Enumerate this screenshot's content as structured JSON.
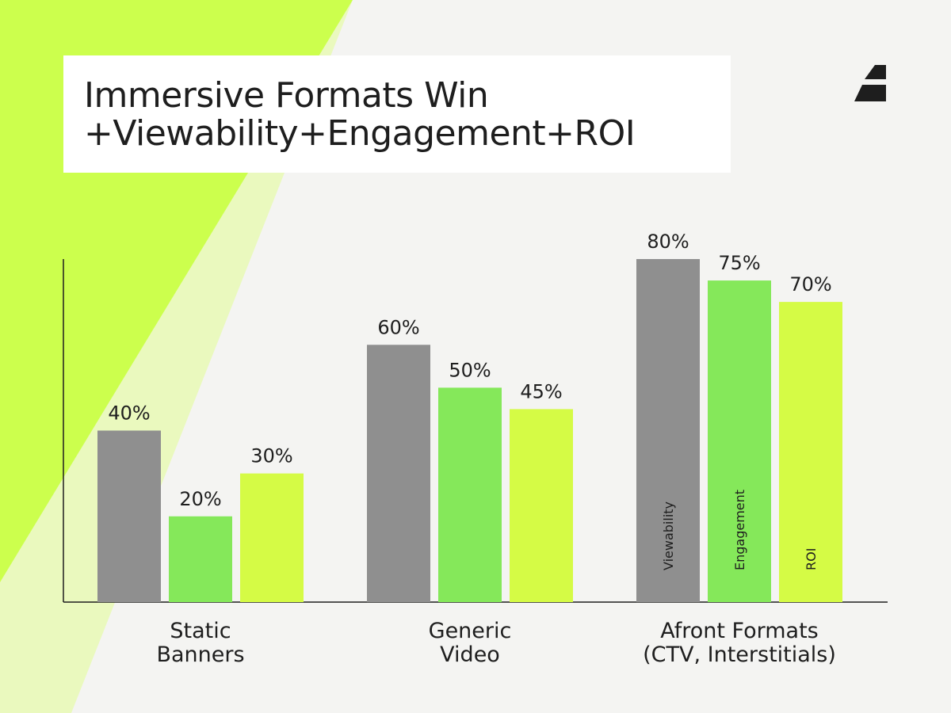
{
  "title": {
    "line1": "Immersive Formats Win",
    "line2": "+Viewability+Engagement+ROI"
  },
  "logo": {
    "icon": "brand-logo-icon"
  },
  "colors": {
    "background": "#f4f4f2",
    "accent_lime": "#ccff4d",
    "viewability": "#8f8f8f",
    "engagement": "#85e85a",
    "roi": "#d5fb45",
    "text": "#1e1e1e"
  },
  "chart_data": {
    "type": "bar",
    "title": "Immersive Formats Win +Viewability+Engagement+ROI",
    "categories": [
      [
        "Static",
        "Banners"
      ],
      [
        "Generic",
        "Video"
      ],
      [
        "Afront Formats",
        "(CTV, Interstitials)"
      ]
    ],
    "series": [
      {
        "name": "Viewability",
        "values": [
          40,
          60,
          80
        ],
        "color": "#8f8f8f"
      },
      {
        "name": "Engagement",
        "values": [
          20,
          50,
          75
        ],
        "color": "#85e85a"
      },
      {
        "name": "ROI",
        "values": [
          30,
          45,
          70
        ],
        "color": "#d5fb45"
      }
    ],
    "value_suffix": "%",
    "ylim": [
      0,
      80
    ],
    "xlabel": "",
    "ylabel": "",
    "grid": false,
    "legend": "inside bars of last category"
  }
}
